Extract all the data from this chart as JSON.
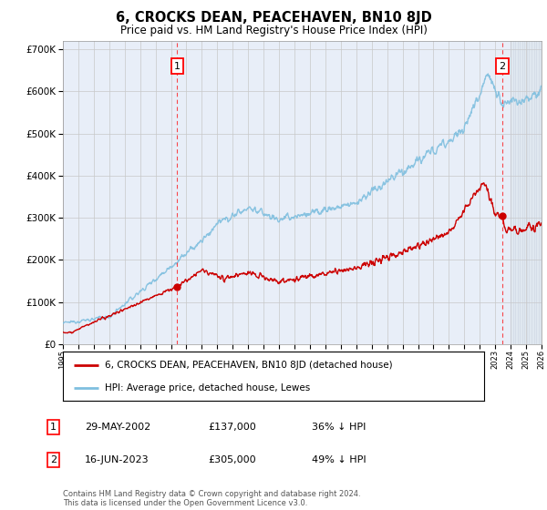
{
  "title": "6, CROCKS DEAN, PEACEHAVEN, BN10 8JD",
  "subtitle": "Price paid vs. HM Land Registry's House Price Index (HPI)",
  "hpi_label": "HPI: Average price, detached house, Lewes",
  "property_label": "6, CROCKS DEAN, PEACEHAVEN, BN10 8JD (detached house)",
  "sale1_date": "29-MAY-2002",
  "sale1_price": 137000,
  "sale1_pct": "36% ↓ HPI",
  "sale1_year": 2002.41,
  "sale2_date": "16-JUN-2023",
  "sale2_price": 305000,
  "sale2_pct": "49% ↓ HPI",
  "sale2_year": 2023.46,
  "xmin": 1995,
  "xmax": 2026,
  "ymin": 0,
  "ymax": 720000,
  "hpi_color": "#7fbfdf",
  "sale_color": "#cc0000",
  "background_color": "#ffffff",
  "plot_bg_color": "#e8eef8",
  "grid_color": "#c8c8c8",
  "hatch_color": "#d0d0d0",
  "footer": "Contains HM Land Registry data © Crown copyright and database right 2024.\nThis data is licensed under the Open Government Licence v3.0."
}
